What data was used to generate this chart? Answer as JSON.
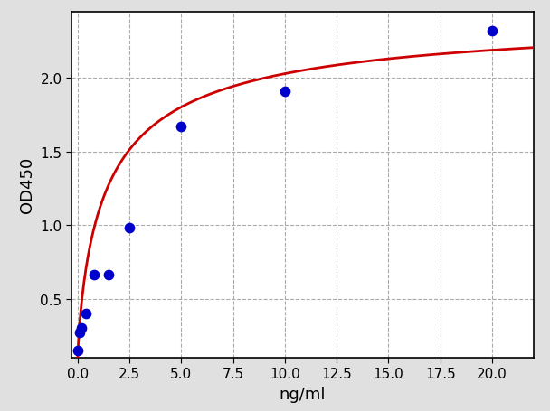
{
  "scatter_x": [
    0.0,
    0.1,
    0.2,
    0.4,
    0.8,
    1.5,
    2.5,
    5.0,
    10.0,
    20.0
  ],
  "scatter_y": [
    0.15,
    0.27,
    0.3,
    0.4,
    0.66,
    0.66,
    0.98,
    1.67,
    1.91,
    2.32
  ],
  "scatter_color": "#0000cc",
  "scatter_size": 55,
  "curve_color": "#cc0000",
  "curve_lw": 2.0,
  "xlabel": "ng/ml",
  "ylabel": "OD450",
  "xlim": [
    -0.3,
    22.0
  ],
  "ylim": [
    0.1,
    2.45
  ],
  "xticks": [
    0.0,
    2.5,
    5.0,
    7.5,
    10.0,
    12.5,
    15.0,
    17.5,
    20.0
  ],
  "yticks": [
    0.5,
    1.0,
    1.5,
    2.0
  ],
  "bg_color": "#e0e0e0",
  "plot_bg_color": "#ffffff",
  "grid_color": "#aaaaaa",
  "grid_style": "--",
  "grid_lw": 0.8,
  "xlabel_fontsize": 13,
  "ylabel_fontsize": 13,
  "tick_fontsize": 11
}
